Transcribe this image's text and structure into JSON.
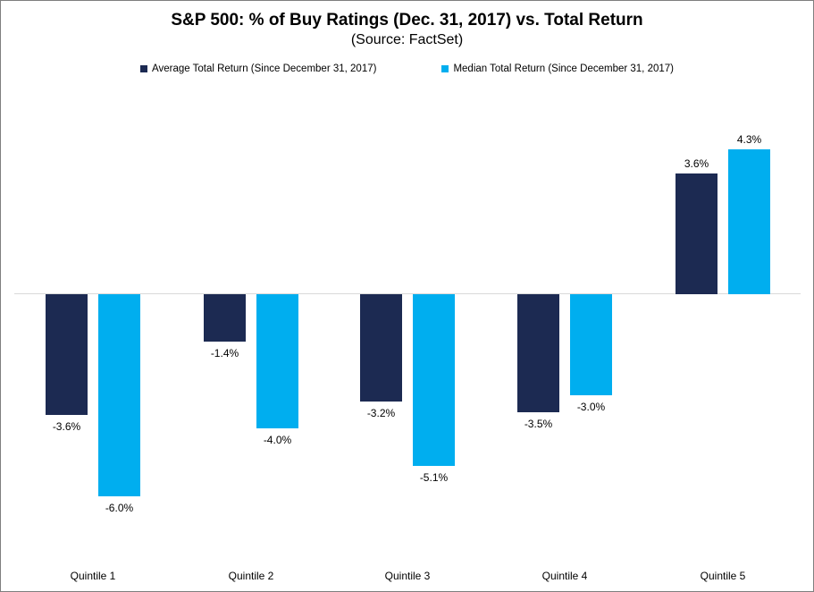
{
  "chart_data": {
    "type": "bar",
    "title": "S&P 500: % of Buy Ratings (Dec. 31, 2017) vs. Total Return",
    "subtitle": "(Source: FactSet)",
    "categories": [
      "Quintile 1",
      "Quintile 2",
      "Quintile 3",
      "Quintile 4",
      "Quintile 5"
    ],
    "series": [
      {
        "name": "Average Total Return (Since December 31, 2017)",
        "color": "#1c2a52",
        "values": [
          -3.6,
          -1.4,
          -3.2,
          -3.5,
          3.6
        ],
        "labels": [
          "-3.6%",
          "-1.4%",
          "-3.2%",
          "-3.5%",
          "3.6%"
        ]
      },
      {
        "name": "Median Total Return (Since December 31, 2017)",
        "color": "#00aeef",
        "values": [
          -6.0,
          -4.0,
          -5.1,
          -3.0,
          4.3
        ],
        "labels": [
          "-6.0%",
          "-4.0%",
          "-5.1%",
          "-3.0%",
          "4.3%"
        ]
      }
    ],
    "ylabel": "",
    "xlabel": "",
    "ylim": [
      -7,
      5
    ],
    "grid": false,
    "y_axis_visible": false,
    "legend_position": "top",
    "baseline_color": "#d9d9d9",
    "background_color": "#ffffff",
    "border_color": "#7f7f7f"
  }
}
